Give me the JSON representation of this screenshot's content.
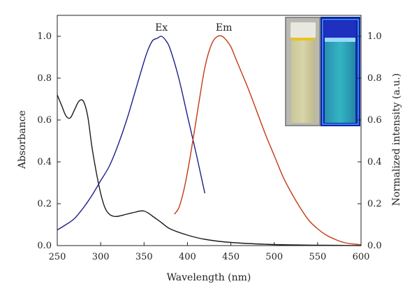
{
  "chart_data": {
    "type": "line",
    "xlabel": "Wavelength (nm)",
    "ylabel": "Absorbance",
    "y2label": "Normalized intensity (a.u.)",
    "xlim": [
      250,
      600
    ],
    "ylim": [
      0,
      1.1
    ],
    "y2lim": [
      0,
      1.1
    ],
    "grid": false,
    "x_ticks": [
      "250",
      "300",
      "350",
      "400",
      "450",
      "500",
      "550",
      "600"
    ],
    "y_ticks": [
      "0.0",
      "0.2",
      "0.4",
      "0.6",
      "0.8",
      "1.0"
    ],
    "y2_ticks": [
      "0.0",
      "0.2",
      "0.4",
      "0.6",
      "0.8",
      "1.0"
    ],
    "annotations": [
      {
        "text": "Ex",
        "x": 370,
        "y": 1.02
      },
      {
        "text": "Em",
        "x": 442,
        "y": 1.02
      }
    ],
    "series": [
      {
        "color": "#1a1a1a",
        "axis": "left",
        "x": [
          250,
          255,
          260,
          265,
          270,
          275,
          280,
          285,
          290,
          295,
          300,
          305,
          310,
          315,
          320,
          330,
          340,
          345,
          350,
          355,
          360,
          370,
          380,
          400,
          420,
          450,
          500,
          550,
          600
        ],
        "y": [
          0.72,
          0.67,
          0.62,
          0.61,
          0.65,
          0.69,
          0.69,
          0.62,
          0.47,
          0.35,
          0.25,
          0.18,
          0.15,
          0.14,
          0.14,
          0.15,
          0.16,
          0.165,
          0.165,
          0.155,
          0.14,
          0.11,
          0.08,
          0.05,
          0.03,
          0.015,
          0.005,
          0.002,
          0.0
        ]
      },
      {
        "color": "#1f1f8a",
        "axis": "right",
        "x": [
          250,
          260,
          270,
          280,
          290,
          300,
          310,
          320,
          330,
          340,
          350,
          355,
          360,
          365,
          370,
          375,
          380,
          390,
          400,
          410,
          420
        ],
        "y": [
          0.075,
          0.1,
          0.13,
          0.18,
          0.24,
          0.31,
          0.38,
          0.48,
          0.6,
          0.74,
          0.88,
          0.94,
          0.98,
          0.99,
          1.0,
          0.98,
          0.94,
          0.8,
          0.62,
          0.44,
          0.25
        ]
      },
      {
        "color": "#c43a12",
        "axis": "right",
        "x": [
          385,
          390,
          395,
          400,
          405,
          410,
          415,
          420,
          425,
          430,
          435,
          440,
          445,
          450,
          455,
          460,
          470,
          480,
          490,
          500,
          510,
          520,
          530,
          540,
          550,
          560,
          570,
          580,
          590,
          600
        ],
        "y": [
          0.15,
          0.18,
          0.25,
          0.35,
          0.47,
          0.6,
          0.73,
          0.85,
          0.93,
          0.98,
          1.0,
          1.0,
          0.98,
          0.95,
          0.9,
          0.85,
          0.75,
          0.64,
          0.53,
          0.43,
          0.33,
          0.25,
          0.18,
          0.12,
          0.08,
          0.05,
          0.03,
          0.015,
          0.008,
          0.004
        ]
      }
    ]
  },
  "inset": {
    "vial_left_color": "#d8d5a8",
    "vial_right_color": "#33b5c2",
    "frame_color": "#0a2a9c"
  }
}
